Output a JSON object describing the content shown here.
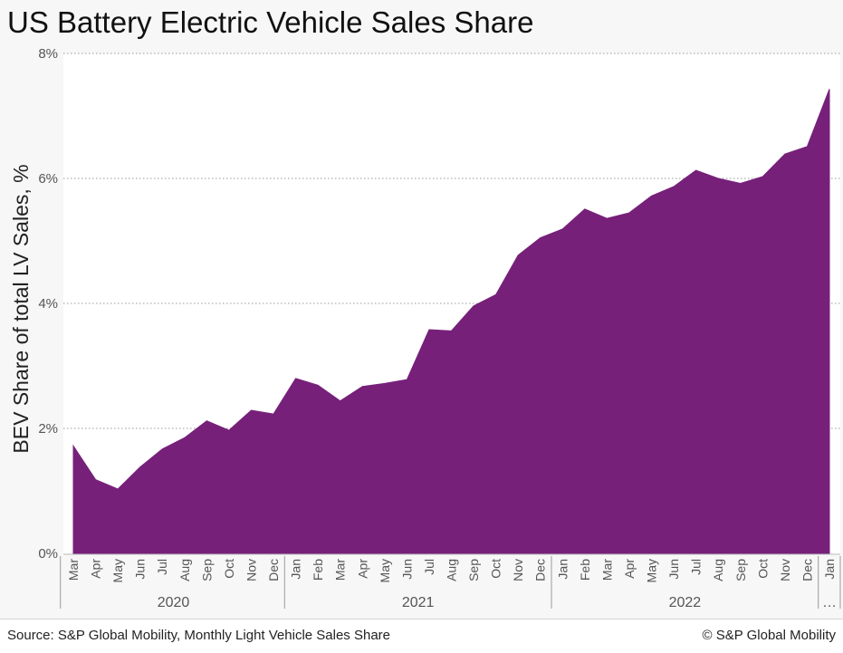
{
  "title": "US Battery Electric Vehicle Sales Share",
  "footer": {
    "source": "Source: S&P Global Mobility, Monthly Light Vehicle Sales Share",
    "credit": "© S&P Global Mobility"
  },
  "colors": {
    "fill": "#76207a",
    "grid": "#9a9a9a",
    "axis_text": "#555555",
    "background": "#f7f7f7"
  },
  "chart_data": {
    "type": "area",
    "title": "US Battery Electric Vehicle Sales Share",
    "ylabel": "BEV Share of total LV Sales, %",
    "xlabel": "",
    "ylim": [
      0,
      8
    ],
    "y_ticks": [
      "0%",
      "2%",
      "4%",
      "6%",
      "8%"
    ],
    "y_tick_values": [
      0,
      2,
      4,
      6,
      8
    ],
    "grid": "horizontal dotted",
    "x": [
      "Mar",
      "Apr",
      "May",
      "Jun",
      "Jul",
      "Aug",
      "Sep",
      "Oct",
      "Nov",
      "Dec",
      "Jan",
      "Feb",
      "Mar",
      "Apr",
      "May",
      "Jun",
      "Jul",
      "Aug",
      "Sep",
      "Oct",
      "Nov",
      "Dec",
      "Jan",
      "Feb",
      "Mar",
      "Apr",
      "May",
      "Jun",
      "Jul",
      "Aug",
      "Sep",
      "Oct",
      "Nov",
      "Dec",
      "Jan"
    ],
    "values": [
      1.72,
      1.18,
      1.03,
      1.38,
      1.67,
      1.85,
      2.12,
      1.97,
      2.29,
      2.23,
      2.8,
      2.69,
      2.44,
      2.67,
      2.72,
      2.78,
      3.58,
      3.56,
      3.96,
      4.14,
      4.77,
      5.05,
      5.19,
      5.51,
      5.36,
      5.45,
      5.72,
      5.87,
      6.13,
      6.0,
      5.92,
      6.03,
      6.39,
      6.51,
      7.43
    ],
    "year_groups": [
      {
        "label": "2020",
        "start": 0,
        "end": 9
      },
      {
        "label": "2021",
        "start": 10,
        "end": 21
      },
      {
        "label": "2022",
        "start": 22,
        "end": 33
      },
      {
        "label": "…",
        "start": 34,
        "end": 34
      }
    ]
  }
}
